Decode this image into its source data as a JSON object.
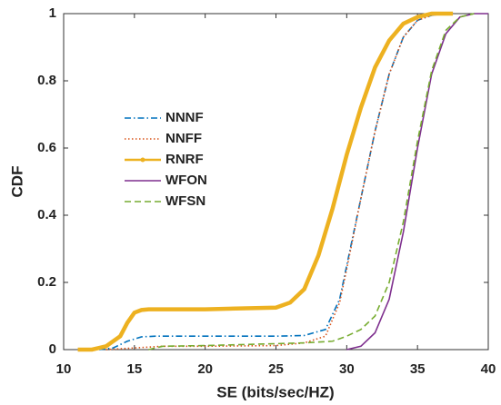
{
  "chart_data": {
    "type": "line",
    "xlabel": "SE (bits/sec/HZ)",
    "ylabel": "CDF",
    "xlim": [
      10,
      40
    ],
    "xticks": [
      10,
      15,
      20,
      25,
      30,
      35,
      40
    ],
    "ylim": [
      0,
      1
    ],
    "yticks": [
      0,
      0.2,
      0.4,
      0.6,
      0.8,
      1
    ],
    "series": [
      {
        "name": "NNNF",
        "color": "#0072bd",
        "linestyle": "-.",
        "x": [
          12.5,
          13.5,
          14.5,
          15.5,
          16.5,
          20,
          25,
          27,
          28.5,
          29.5,
          30,
          31,
          32,
          33,
          34,
          35,
          36,
          37
        ],
        "values": [
          0,
          0.005,
          0.025,
          0.038,
          0.04,
          0.04,
          0.04,
          0.042,
          0.06,
          0.15,
          0.25,
          0.45,
          0.65,
          0.82,
          0.93,
          0.98,
          0.995,
          1
        ]
      },
      {
        "name": "NNFF",
        "color": "#d95319",
        "linestyle": ":",
        "x": [
          13,
          15,
          17,
          20,
          25,
          27,
          28.5,
          29.5,
          30,
          31,
          32,
          33,
          34,
          35,
          36,
          37
        ],
        "values": [
          0,
          0.005,
          0.01,
          0.01,
          0.012,
          0.02,
          0.04,
          0.14,
          0.24,
          0.45,
          0.65,
          0.82,
          0.93,
          0.98,
          0.995,
          1
        ]
      },
      {
        "name": "RNRF",
        "color": "#edb120",
        "linestyle": "-",
        "marker": ".",
        "x": [
          11,
          12,
          13,
          14,
          14.5,
          15,
          15.5,
          16,
          20,
          25,
          26,
          27,
          28,
          29,
          30,
          31,
          32,
          33,
          34,
          35,
          36,
          37.5
        ],
        "values": [
          0,
          0,
          0.01,
          0.04,
          0.08,
          0.11,
          0.118,
          0.12,
          0.12,
          0.125,
          0.14,
          0.18,
          0.28,
          0.42,
          0.58,
          0.72,
          0.84,
          0.92,
          0.97,
          0.99,
          1,
          1
        ]
      },
      {
        "name": "WFON",
        "color": "#7e2f8e",
        "linestyle": "-",
        "x": [
          30,
          31,
          32,
          33,
          34,
          35,
          36,
          37,
          38,
          39,
          40
        ],
        "values": [
          0,
          0.01,
          0.05,
          0.15,
          0.35,
          0.6,
          0.82,
          0.94,
          0.99,
          1,
          1
        ]
      },
      {
        "name": "WFSN",
        "color": "#77ac30",
        "linestyle": "--",
        "x": [
          16,
          17,
          20,
          27,
          29,
          30,
          31,
          32,
          33,
          34,
          35,
          36,
          37,
          38,
          39
        ],
        "values": [
          0,
          0.01,
          0.012,
          0.02,
          0.025,
          0.04,
          0.06,
          0.1,
          0.2,
          0.38,
          0.62,
          0.83,
          0.95,
          0.99,
          1
        ]
      }
    ]
  }
}
